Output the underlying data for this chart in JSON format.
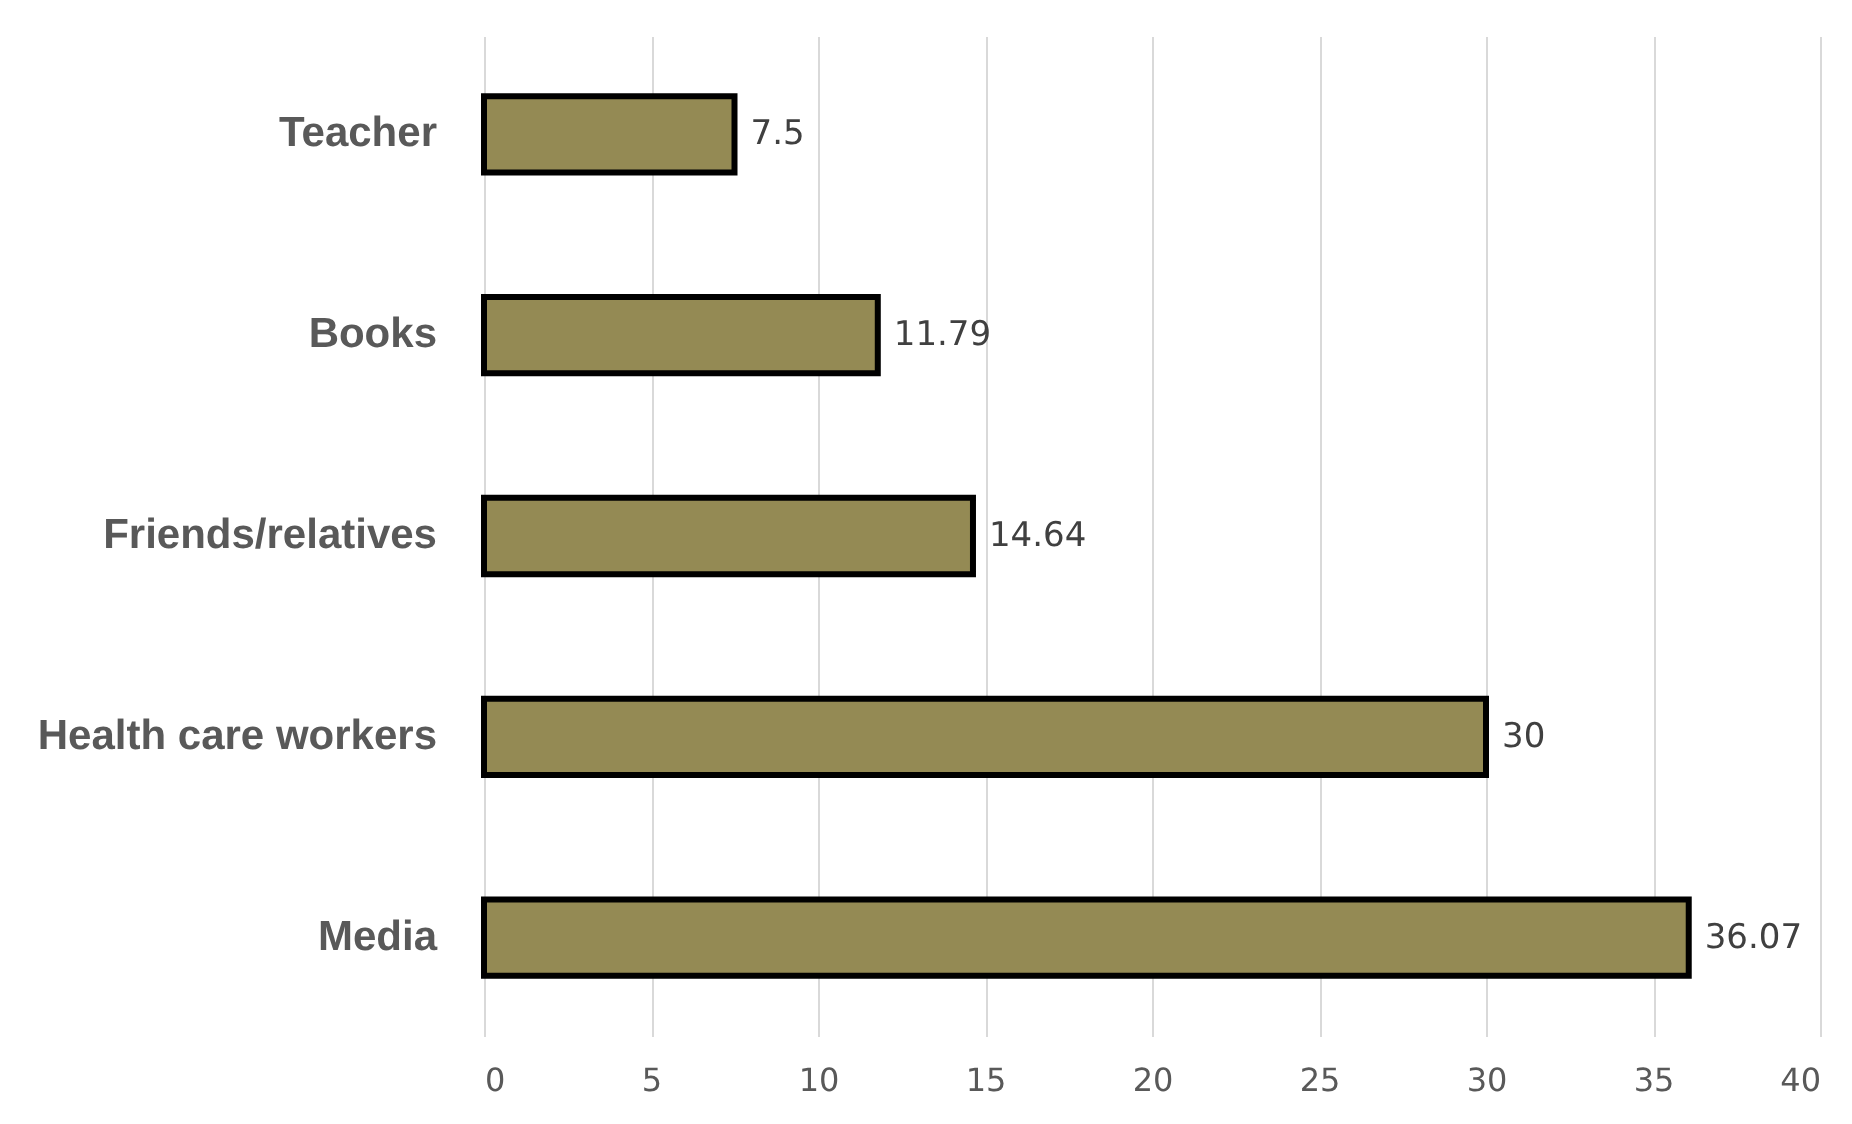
{
  "chart_data": {
    "type": "bar",
    "orientation": "horizontal",
    "categories": [
      "Teacher",
      "Books",
      "Friends/relatives",
      "Health care workers",
      "Media"
    ],
    "values": [
      7.5,
      11.79,
      14.64,
      30,
      36.07
    ],
    "color": "#948a54",
    "xlim": [
      0,
      40
    ],
    "xticks": [
      0,
      5,
      10,
      15,
      20,
      25,
      30,
      35,
      40
    ],
    "grid": "x",
    "data_labels": true
  }
}
